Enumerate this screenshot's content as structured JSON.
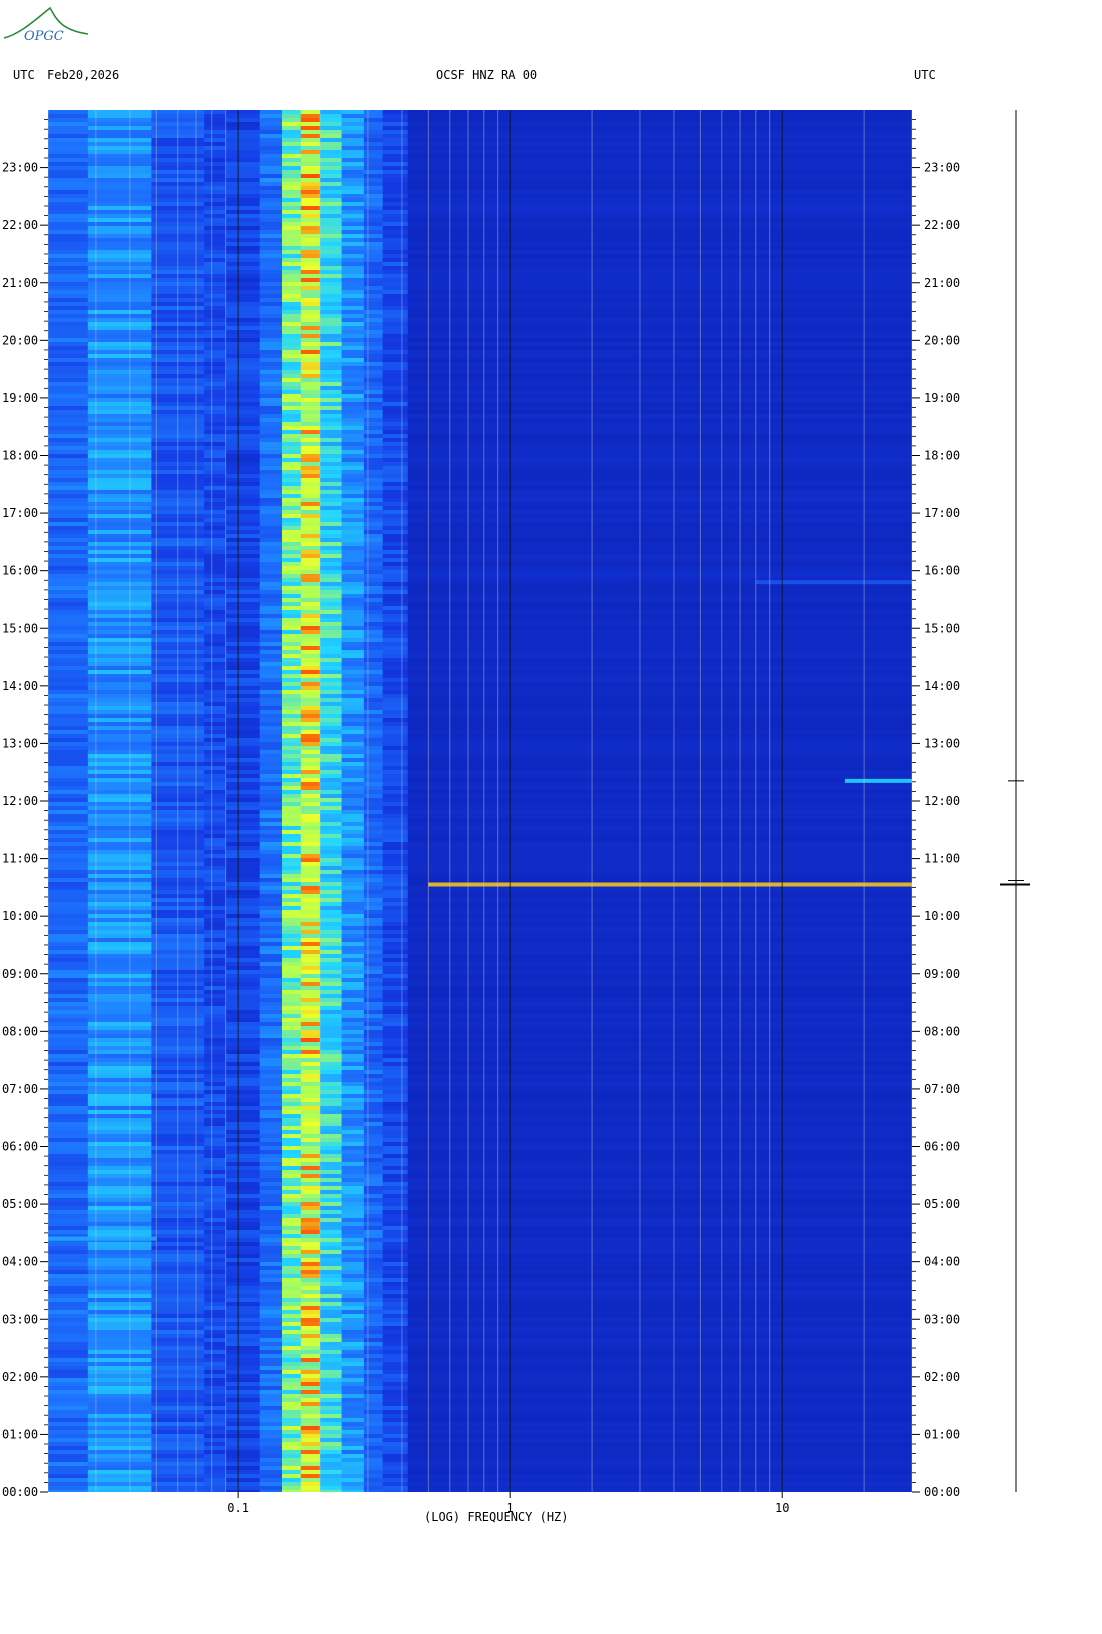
{
  "logo": {
    "text": "OPGC",
    "color": "#2a8a3a"
  },
  "header": {
    "left_tz": "UTC",
    "date": "Feb20,2026",
    "station": "OCSF HNZ RA 00",
    "right_tz": "UTC"
  },
  "chart_data": {
    "type": "heatmap",
    "title": "OCSF HNZ RA 00",
    "xlabel": "(LOG) FREQUENCY (HZ)",
    "ylabel": "",
    "x_scale": "log",
    "xlim": [
      0.02,
      30
    ],
    "x_ticks": [
      {
        "value": 0.1,
        "label": "0.1"
      },
      {
        "value": 1,
        "label": "1"
      },
      {
        "value": 10,
        "label": "10"
      }
    ],
    "ylim": [
      0,
      24
    ],
    "y_ticks": [
      "00:00",
      "01:00",
      "02:00",
      "03:00",
      "04:00",
      "05:00",
      "06:00",
      "07:00",
      "08:00",
      "09:00",
      "10:00",
      "11:00",
      "12:00",
      "13:00",
      "14:00",
      "15:00",
      "16:00",
      "17:00",
      "18:00",
      "19:00",
      "20:00",
      "21:00",
      "22:00",
      "23:00"
    ],
    "colors": {
      "low": "#0a1aa8",
      "mid": "#1e6cff",
      "cyan": "#22d6ff",
      "high": "#e8ff30",
      "max": "#ff3000"
    },
    "bands": [
      {
        "f0": 0.02,
        "f1": 0.028,
        "level": 0.42
      },
      {
        "f0": 0.028,
        "f1": 0.048,
        "level": 0.55
      },
      {
        "f0": 0.048,
        "f1": 0.075,
        "level": 0.36
      },
      {
        "f0": 0.075,
        "f1": 0.09,
        "level": 0.3
      },
      {
        "f0": 0.09,
        "f1": 0.12,
        "level": 0.28
      },
      {
        "f0": 0.12,
        "f1": 0.145,
        "level": 0.45
      },
      {
        "f0": 0.145,
        "f1": 0.17,
        "level": 0.78
      },
      {
        "f0": 0.17,
        "f1": 0.2,
        "level": 0.88
      },
      {
        "f0": 0.2,
        "f1": 0.24,
        "level": 0.7
      },
      {
        "f0": 0.24,
        "f1": 0.29,
        "level": 0.55
      },
      {
        "f0": 0.29,
        "f1": 0.34,
        "level": 0.42
      },
      {
        "f0": 0.34,
        "f1": 0.42,
        "level": 0.3
      },
      {
        "f0": 0.42,
        "f1": 30,
        "level": 0.12
      }
    ],
    "events": [
      {
        "time": 10.55,
        "f0": 0.5,
        "f1": 30,
        "level": 0.95
      },
      {
        "time": 12.35,
        "f0": 17,
        "f1": 30,
        "level": 0.7
      },
      {
        "time": 15.8,
        "f0": 8,
        "f1": 30,
        "level": 0.35
      },
      {
        "time": 4.4,
        "f0": 0.02,
        "f1": 0.05,
        "level": 0.6
      }
    ],
    "seismogram": {
      "event_time": 10.55
    }
  }
}
